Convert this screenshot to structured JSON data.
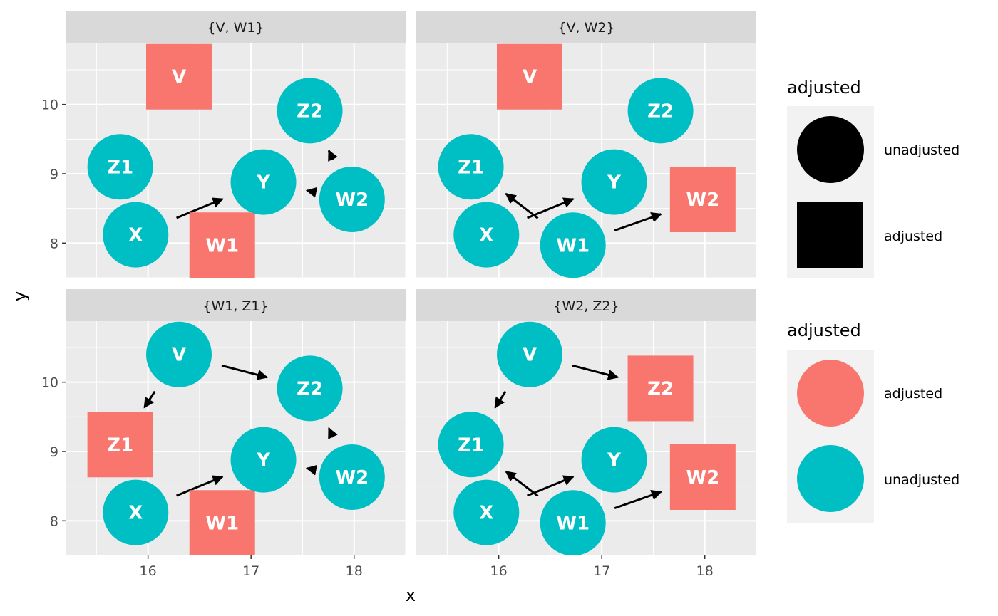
{
  "axes": {
    "x_title": "x",
    "y_title": "y",
    "x_ticks": [
      16,
      17,
      18
    ],
    "y_ticks": [
      8,
      9,
      10
    ],
    "x_range": [
      15.2,
      18.5
    ],
    "y_range": [
      7.5,
      10.88
    ]
  },
  "colors": {
    "panel_bg": "#ebebeb",
    "strip_bg": "#d9d9d9",
    "grid": "#ffffff",
    "adjusted": "#f8766d",
    "unadjusted": "#00bfc4",
    "legend_key_bg": "#f2f2f2",
    "arrow": "#000000"
  },
  "panels": [
    {
      "label": "{V, W1}",
      "nodes": [
        {
          "name": "V",
          "x": 16.3,
          "y": 10.4,
          "adjusted": true
        },
        {
          "name": "W1",
          "x": 16.72,
          "y": 7.97,
          "adjusted": true
        },
        {
          "name": "W2",
          "x": 17.98,
          "y": 8.63,
          "adjusted": false
        },
        {
          "name": "X",
          "x": 15.88,
          "y": 8.12,
          "adjusted": false
        },
        {
          "name": "Y",
          "x": 17.12,
          "y": 8.88,
          "adjusted": false
        },
        {
          "name": "Z1",
          "x": 15.73,
          "y": 9.1,
          "adjusted": false
        },
        {
          "name": "Z2",
          "x": 17.57,
          "y": 9.91,
          "adjusted": false
        }
      ],
      "edges": [
        {
          "from": "X",
          "to": "Y"
        },
        {
          "from": "W2",
          "to": "Y"
        },
        {
          "from": "W2",
          "to": "Z2"
        }
      ]
    },
    {
      "label": "{V, W2}",
      "nodes": [
        {
          "name": "V",
          "x": 16.3,
          "y": 10.4,
          "adjusted": true
        },
        {
          "name": "W1",
          "x": 16.72,
          "y": 7.97,
          "adjusted": false
        },
        {
          "name": "W2",
          "x": 17.98,
          "y": 8.63,
          "adjusted": true
        },
        {
          "name": "X",
          "x": 15.88,
          "y": 8.12,
          "adjusted": false
        },
        {
          "name": "Y",
          "x": 17.12,
          "y": 8.88,
          "adjusted": false
        },
        {
          "name": "Z1",
          "x": 15.73,
          "y": 9.1,
          "adjusted": false
        },
        {
          "name": "Z2",
          "x": 17.57,
          "y": 9.91,
          "adjusted": false
        }
      ],
      "edges": [
        {
          "from": "X",
          "to": "Y"
        },
        {
          "from": "W1",
          "to": "Z1"
        },
        {
          "from": "W1",
          "to": "W2"
        }
      ]
    },
    {
      "label": "{W1, Z1}",
      "nodes": [
        {
          "name": "V",
          "x": 16.3,
          "y": 10.4,
          "adjusted": false
        },
        {
          "name": "W1",
          "x": 16.72,
          "y": 7.97,
          "adjusted": true
        },
        {
          "name": "W2",
          "x": 17.98,
          "y": 8.63,
          "adjusted": false
        },
        {
          "name": "X",
          "x": 15.88,
          "y": 8.12,
          "adjusted": false
        },
        {
          "name": "Y",
          "x": 17.12,
          "y": 8.88,
          "adjusted": false
        },
        {
          "name": "Z1",
          "x": 15.73,
          "y": 9.1,
          "adjusted": true
        },
        {
          "name": "Z2",
          "x": 17.57,
          "y": 9.91,
          "adjusted": false
        }
      ],
      "edges": [
        {
          "from": "X",
          "to": "Y"
        },
        {
          "from": "V",
          "to": "Z1"
        },
        {
          "from": "V",
          "to": "Z2"
        },
        {
          "from": "W2",
          "to": "Y"
        },
        {
          "from": "W2",
          "to": "Z2"
        }
      ]
    },
    {
      "label": "{W2, Z2}",
      "nodes": [
        {
          "name": "V",
          "x": 16.3,
          "y": 10.4,
          "adjusted": false
        },
        {
          "name": "W1",
          "x": 16.72,
          "y": 7.97,
          "adjusted": false
        },
        {
          "name": "W2",
          "x": 17.98,
          "y": 8.63,
          "adjusted": true
        },
        {
          "name": "X",
          "x": 15.88,
          "y": 8.12,
          "adjusted": false
        },
        {
          "name": "Y",
          "x": 17.12,
          "y": 8.88,
          "adjusted": false
        },
        {
          "name": "Z1",
          "x": 15.73,
          "y": 9.1,
          "adjusted": false
        },
        {
          "name": "Z2",
          "x": 17.57,
          "y": 9.91,
          "adjusted": true
        }
      ],
      "edges": [
        {
          "from": "X",
          "to": "Y"
        },
        {
          "from": "V",
          "to": "Z1"
        },
        {
          "from": "V",
          "to": "Z2"
        },
        {
          "from": "W1",
          "to": "Z1"
        },
        {
          "from": "W1",
          "to": "W2"
        }
      ]
    }
  ],
  "legends": [
    {
      "title": "adjusted",
      "kind": "shape",
      "items": [
        {
          "label": "unadjusted",
          "shape": "circle",
          "color": "#000000"
        },
        {
          "label": "adjusted",
          "shape": "square",
          "color": "#000000"
        }
      ]
    },
    {
      "title": "adjusted",
      "kind": "colour",
      "items": [
        {
          "label": "adjusted",
          "shape": "circle",
          "color": "#f8766d"
        },
        {
          "label": "unadjusted",
          "shape": "circle",
          "color": "#00bfc4"
        }
      ]
    }
  ]
}
